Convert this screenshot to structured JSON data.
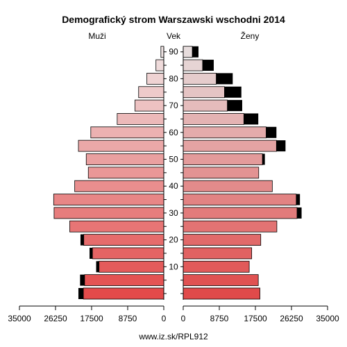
{
  "chart_data": {
    "type": "bar",
    "title": "Demografický strom Warszawski wschodni 2014",
    "left_label": "Muži",
    "center_label": "Vek",
    "right_label": "Ženy",
    "footer": "www.iz.sk/RPL912",
    "xlim": [
      0,
      35000
    ],
    "x_tick_values": [
      35000,
      26250,
      17500,
      8750,
      0,
      8750,
      17500,
      26250,
      35000
    ],
    "age_tick_labels": [
      "10",
      "20",
      "30",
      "40",
      "50",
      "60",
      "70",
      "80",
      "90"
    ],
    "age_groups": [
      "0-4",
      "5-9",
      "10-14",
      "15-19",
      "20-24",
      "25-29",
      "30-34",
      "35-39",
      "40-44",
      "45-49",
      "50-54",
      "55-59",
      "60-64",
      "65-69",
      "70-74",
      "75-79",
      "80-84",
      "85-89",
      "90+"
    ],
    "series": [
      {
        "name": "Muži",
        "values": [
          19500,
          19200,
          15700,
          17300,
          19400,
          22800,
          26600,
          26700,
          21600,
          18300,
          18800,
          20700,
          17700,
          11300,
          7000,
          6100,
          4100,
          1900,
          700
        ],
        "excess": [
          1200,
          1100,
          700,
          700,
          800,
          0,
          0,
          0,
          0,
          0,
          0,
          0,
          0,
          0,
          0,
          0,
          0,
          0,
          0
        ]
      },
      {
        "name": "Ženy",
        "values": [
          18600,
          18200,
          16000,
          16600,
          18800,
          22700,
          27600,
          27400,
          21600,
          18300,
          19200,
          22600,
          20100,
          14700,
          10700,
          10000,
          8000,
          4700,
          2200
        ],
        "excess": [
          0,
          0,
          0,
          0,
          0,
          0,
          1100,
          900,
          0,
          0,
          600,
          2200,
          2500,
          3500,
          3600,
          4100,
          4000,
          2700,
          1500
        ]
      }
    ],
    "colors": {
      "excess": "#000000",
      "bar_stroke": "#000000",
      "young_male": "#e34a4a",
      "old_male": "#f0e4e4",
      "young_female": "#e04a4a",
      "old_female": "#e6dcdc"
    }
  }
}
